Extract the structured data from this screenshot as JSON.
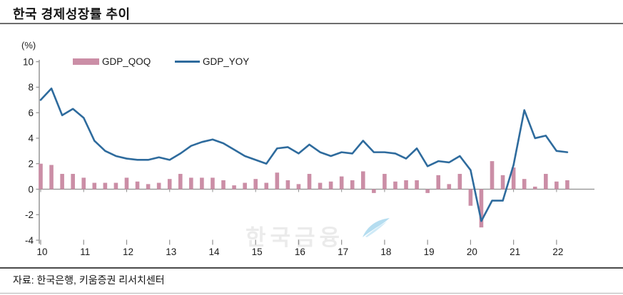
{
  "title": "한국 경제성장률 추이",
  "axis_unit": "(%)",
  "legend": [
    {
      "label": "GDP_QOQ",
      "type": "bar",
      "color": "#cb8ea6"
    },
    {
      "label": "GDP_YOY",
      "type": "line",
      "color": "#2e6b9d"
    }
  ],
  "watermark": {
    "text": "한국금융",
    "icon": "feather-swoosh",
    "icon_color": "#b5ddf0"
  },
  "footer": {
    "source": "자료: 한국은행, 키움증권 리서치센터"
  },
  "chart_data": {
    "type": "bar+line",
    "title": "한국 경제성장률 추이",
    "ylabel": "(%)",
    "ylim": [
      -4,
      10
    ],
    "y_ticks": [
      10,
      8,
      6,
      4,
      2,
      0,
      -2,
      -4
    ],
    "x_tick_labels": [
      "10",
      "11",
      "12",
      "13",
      "14",
      "15",
      "16",
      "17",
      "18",
      "19",
      "20",
      "21",
      "22"
    ],
    "x_start_quarter": "2010Q1",
    "x_end_quarter": "2022Q2",
    "grid": false,
    "legend_position": "top-left",
    "series": [
      {
        "name": "GDP_QOQ",
        "type": "bar",
        "color": "#cb8ea6",
        "values": [
          2.0,
          1.9,
          1.2,
          1.2,
          0.9,
          0.5,
          0.5,
          0.5,
          0.9,
          0.6,
          0.4,
          0.5,
          0.8,
          1.2,
          0.9,
          0.9,
          0.9,
          0.7,
          0.3,
          0.5,
          0.8,
          0.5,
          1.3,
          0.7,
          0.4,
          1.2,
          0.5,
          0.6,
          1.0,
          0.7,
          1.4,
          -0.3,
          1.2,
          0.6,
          0.7,
          0.7,
          -0.3,
          1.1,
          0.4,
          1.2,
          -1.3,
          -3.0,
          2.2,
          1.1,
          1.7,
          0.8,
          0.2,
          1.2,
          0.6,
          0.7
        ]
      },
      {
        "name": "GDP_YOY",
        "type": "line",
        "color": "#2e6b9d",
        "values": [
          7.0,
          7.9,
          5.8,
          6.3,
          5.6,
          3.8,
          3.0,
          2.6,
          2.4,
          2.3,
          2.3,
          2.5,
          2.3,
          2.8,
          3.4,
          3.7,
          3.9,
          3.6,
          3.1,
          2.6,
          2.3,
          2.0,
          3.2,
          3.3,
          2.8,
          3.5,
          2.9,
          2.6,
          2.9,
          2.8,
          3.8,
          2.9,
          2.9,
          2.8,
          2.4,
          3.2,
          1.8,
          2.2,
          2.1,
          2.6,
          1.5,
          -2.5,
          -0.9,
          -0.9,
          1.9,
          6.2,
          4.0,
          4.2,
          3.0,
          2.9
        ]
      }
    ]
  }
}
